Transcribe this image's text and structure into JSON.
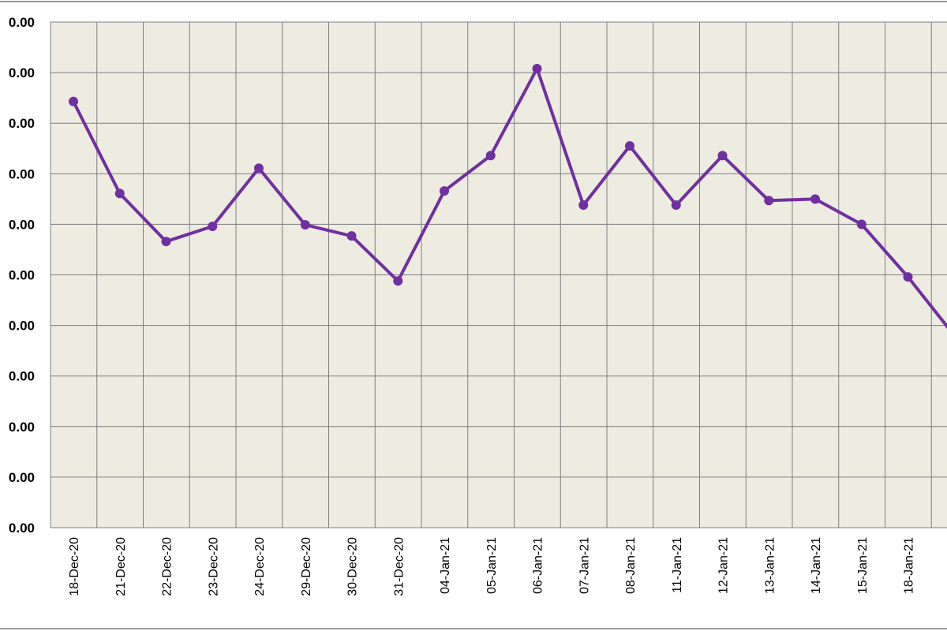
{
  "chart_data": {
    "type": "line",
    "title": "",
    "xlabel": "",
    "ylabel": "",
    "grid": true,
    "legend": "none",
    "colors": {
      "series": "#7030a0",
      "plot_background": "#eeebe1",
      "grid": "#7f7f7f"
    },
    "y_tick_labels": [
      "0.00",
      "0.00",
      "0.00",
      "0.00",
      "0.00",
      "0.00",
      "0.00",
      "0.00",
      "0.00",
      "0.00",
      "0.00"
    ],
    "categories": [
      "18-Dec-20",
      "21-Dec-20",
      "22-Dec-20",
      "23-Dec-20",
      "24-Dec-20",
      "29-Dec-20",
      "30-Dec-20",
      "31-Dec-20",
      "04-Jan-21",
      "05-Jan-21",
      "06-Jan-21",
      "07-Jan-21",
      "08-Jan-21",
      "11-Jan-21",
      "12-Jan-21",
      "13-Jan-21",
      "14-Jan-21",
      "15-Jan-21",
      "18-Jan-21",
      ""
    ],
    "ylim": [
      0,
      10
    ],
    "series": [
      {
        "values": [
          8.43,
          6.61,
          5.66,
          5.96,
          7.11,
          5.99,
          5.77,
          4.88,
          6.66,
          7.36,
          9.08,
          6.38,
          7.55,
          6.38,
          7.36,
          6.47,
          6.5,
          6.0,
          4.96,
          3.8
        ]
      }
    ]
  }
}
